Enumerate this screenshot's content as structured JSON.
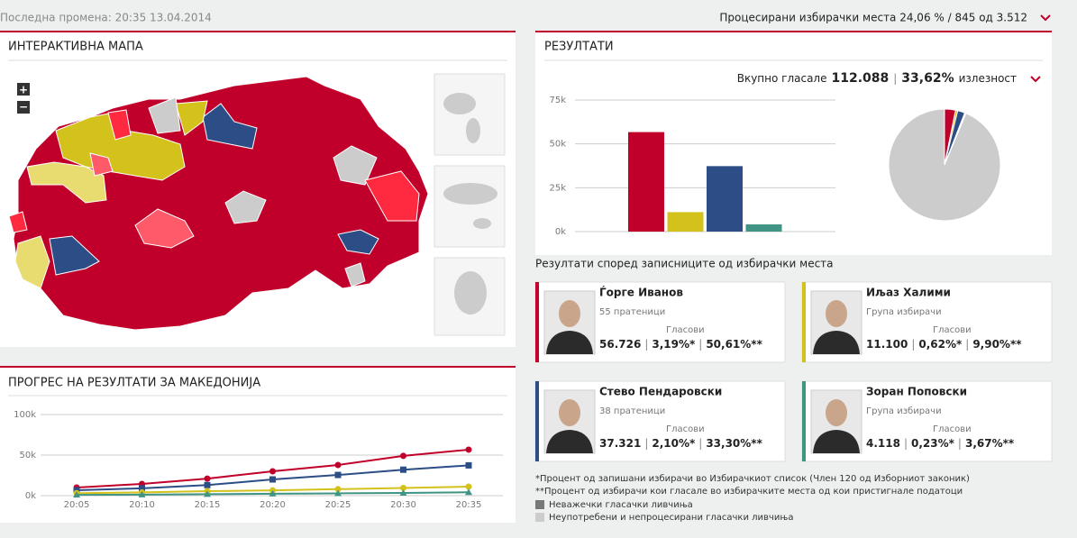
{
  "header": {
    "last_update": "Последна промена: 20:35 13.04.2014",
    "processed": "Процесирани избирачки места 24,06 % / 845 од 3.512"
  },
  "map_panel": {
    "title": "ИНТЕРАКТИВНА МАПА",
    "zoom_in": "+",
    "zoom_out": "−"
  },
  "results_panel": {
    "title": "РЕЗУЛТАТИ",
    "turnout_label": "Вкупно гласале",
    "turnout_total": "112.088",
    "turnout_percent": "33,62%",
    "turnout_suffix": "излезност"
  },
  "progress_panel": {
    "title": "ПРОГРЕС НА РЕЗУЛТАТИ ЗА МАКЕДОНИЈА"
  },
  "cards_title": "Резултати според записниците од избирачки места",
  "votes_label": "Гласови",
  "separator": "|",
  "candidates": [
    {
      "name": "Ѓорге Иванов",
      "group": "55 пратеници",
      "votes": "56.726",
      "pct_registered": "3,19%*",
      "pct_voted": "50,61%**",
      "color": "#c0002a"
    },
    {
      "name": "Иљаз Халими",
      "group": "Група избирачи",
      "votes": "11.100",
      "pct_registered": "0,62%*",
      "pct_voted": "9,90%**",
      "color": "#d4c21c"
    },
    {
      "name": "Стево Пендаровски",
      "group": "38 пратеници",
      "votes": "37.321",
      "pct_registered": "2,10%*",
      "pct_voted": "33,30%**",
      "color": "#2c4d86"
    },
    {
      "name": "Зоран Поповски",
      "group": "Група избирачи",
      "votes": "4.118",
      "pct_registered": "0,23%*",
      "pct_voted": "3,67%**",
      "color": "#3f9484"
    }
  ],
  "notes": [
    "*Процент од запишани избирачи во Избирачкиот список (Член 120 од Изборниот законик)",
    "**Процент од избирачи кои гласале во избирачките места од кои пристигнале податоци"
  ],
  "chart_data": [
    {
      "type": "bar",
      "categories": [
        null,
        null,
        null,
        null
      ],
      "values": [
        56726,
        11100,
        37321,
        4118
      ],
      "colors": [
        "#c0002a",
        "#d4c21c",
        "#2c4d86",
        "#3f9484"
      ],
      "ylim": [
        0,
        75000
      ],
      "yticks": [
        {
          "value": 0,
          "label": "0k"
        },
        {
          "value": 25000,
          "label": "25k"
        },
        {
          "value": 50000,
          "label": "50k"
        },
        {
          "value": 75000,
          "label": "75k"
        }
      ],
      "grid": true
    },
    {
      "type": "pie",
      "values": [
        3.19,
        0.62,
        2.1,
        0.23,
        0.16,
        93.7
      ],
      "colors": [
        "#c0002a",
        "#d4c21c",
        "#2c4d86",
        "#3f9484",
        "#777777",
        "#cccccc"
      ],
      "labels": [
        null,
        null,
        null,
        null,
        "Неважечки гласачки ливчиња",
        "Неупотребени и непроцесирани гласачки ливчиња"
      ]
    },
    {
      "type": "line",
      "categories": [
        "20:05",
        "20:10",
        "20:15",
        "20:20",
        "20:25",
        "20:30",
        "20:35"
      ],
      "ylim": [
        0,
        100000
      ],
      "yticks": [
        {
          "value": 0,
          "label": "0k"
        },
        {
          "value": 50000,
          "label": "50k"
        },
        {
          "value": 100000,
          "label": "100k"
        }
      ],
      "grid": true,
      "series": [
        {
          "color": "#c0002a",
          "values": [
            10000,
            14500,
            21000,
            30000,
            37800,
            49000,
            56726
          ]
        },
        {
          "color": "#2c4d86",
          "values": [
            6700,
            9000,
            13000,
            20000,
            25500,
            32000,
            37321
          ]
        },
        {
          "color": "#d4c21c",
          "values": [
            3000,
            4000,
            5500,
            6500,
            8000,
            9500,
            11100
          ]
        },
        {
          "color": "#3f9484",
          "values": [
            1000,
            1300,
            1800,
            2300,
            2800,
            3400,
            4118
          ]
        }
      ]
    }
  ]
}
